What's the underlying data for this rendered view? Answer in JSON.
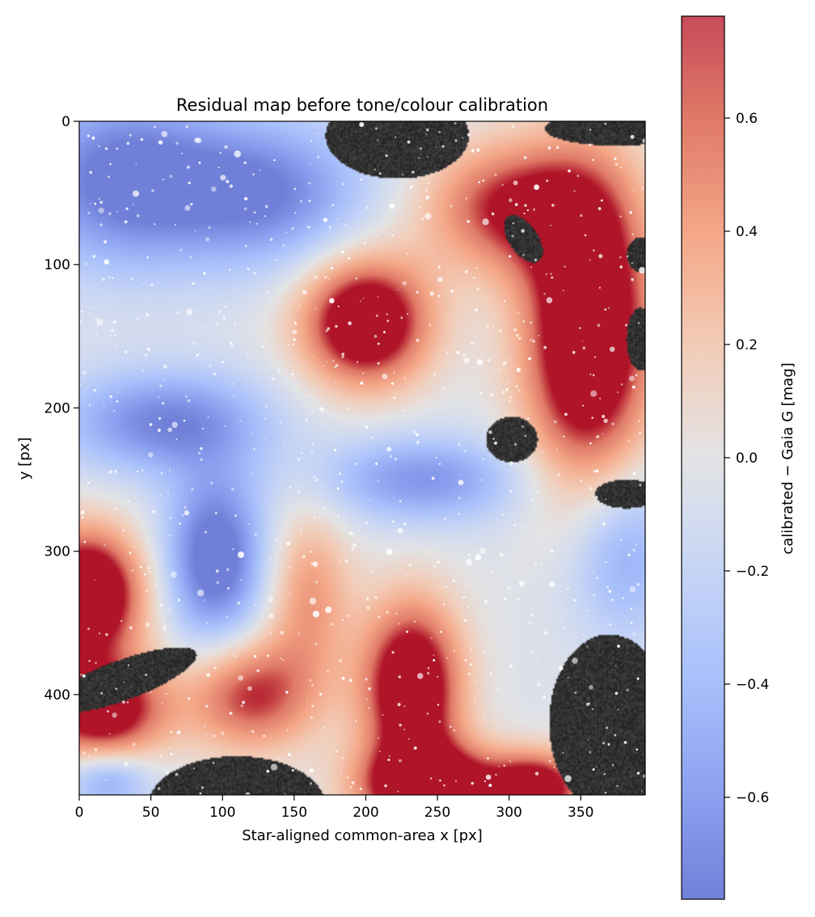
{
  "chart_data": {
    "type": "heatmap",
    "title": "Residual map before tone/colour calibration",
    "xlabel": "Star-aligned common-area x [px]",
    "ylabel": "y [px]",
    "xlim": [
      0,
      395
    ],
    "ylim": [
      470,
      0
    ],
    "x_ticks": [
      0,
      50,
      100,
      150,
      200,
      250,
      300,
      350
    ],
    "y_ticks": [
      0,
      100,
      200,
      300,
      400
    ],
    "colorbar": {
      "label": "calibrated − Gaia G [mag]",
      "colormap": "coolwarm",
      "vmin": -0.78,
      "vmax": 0.78,
      "ticks": [
        -0.6,
        -0.4,
        -0.2,
        0.0,
        0.2,
        0.4,
        0.6
      ],
      "tick_labels": [
        "−0.6",
        "−0.4",
        "−0.2",
        "0.0",
        "0.2",
        "0.4",
        "0.6"
      ]
    },
    "residual_peaks": [
      {
        "x": 200,
        "y": 140,
        "value": 0.75
      },
      {
        "x": 355,
        "y": 140,
        "value": 0.78
      },
      {
        "x": 5,
        "y": 330,
        "value": 0.78
      },
      {
        "x": 230,
        "y": 390,
        "value": 0.76
      },
      {
        "x": 250,
        "y": 460,
        "value": 0.78
      },
      {
        "x": 95,
        "y": 310,
        "value": -0.55
      },
      {
        "x": 30,
        "y": 40,
        "value": -0.5
      },
      {
        "x": 120,
        "y": 40,
        "value": -0.45
      }
    ],
    "masked_regions_colour": "grayscale star image (masked areas)"
  }
}
